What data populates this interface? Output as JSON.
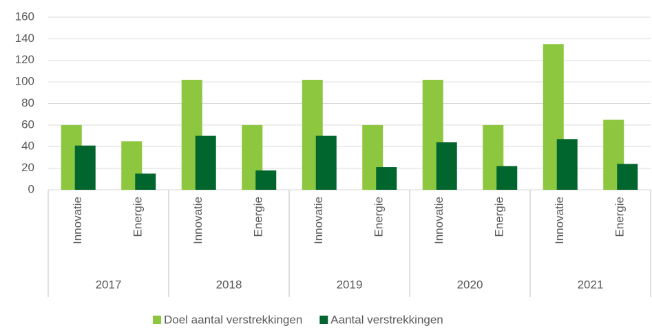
{
  "chart_data": {
    "type": "bar",
    "categories": [
      "Innovatie",
      "Energie",
      "Innovatie",
      "Energie",
      "Innovatie",
      "Energie",
      "Innovatie",
      "Energie",
      "Innovatie",
      "Energie"
    ],
    "groups": [
      "2017",
      "2018",
      "2019",
      "2020",
      "2021"
    ],
    "series": [
      {
        "name": "Doel aantal verstrekkingen",
        "color": "#8dc63f",
        "values": [
          60,
          45,
          102,
          60,
          102,
          60,
          102,
          60,
          135,
          65
        ]
      },
      {
        "name": "Aantal verstrekkingen",
        "color": "#00662e",
        "values": [
          41,
          15,
          50,
          18,
          50,
          21,
          44,
          22,
          47,
          24
        ]
      }
    ],
    "ylim": [
      0,
      160
    ],
    "yticks": [
      0,
      20,
      40,
      60,
      80,
      100,
      120,
      140,
      160
    ],
    "grid": true,
    "legend": "bottom"
  }
}
